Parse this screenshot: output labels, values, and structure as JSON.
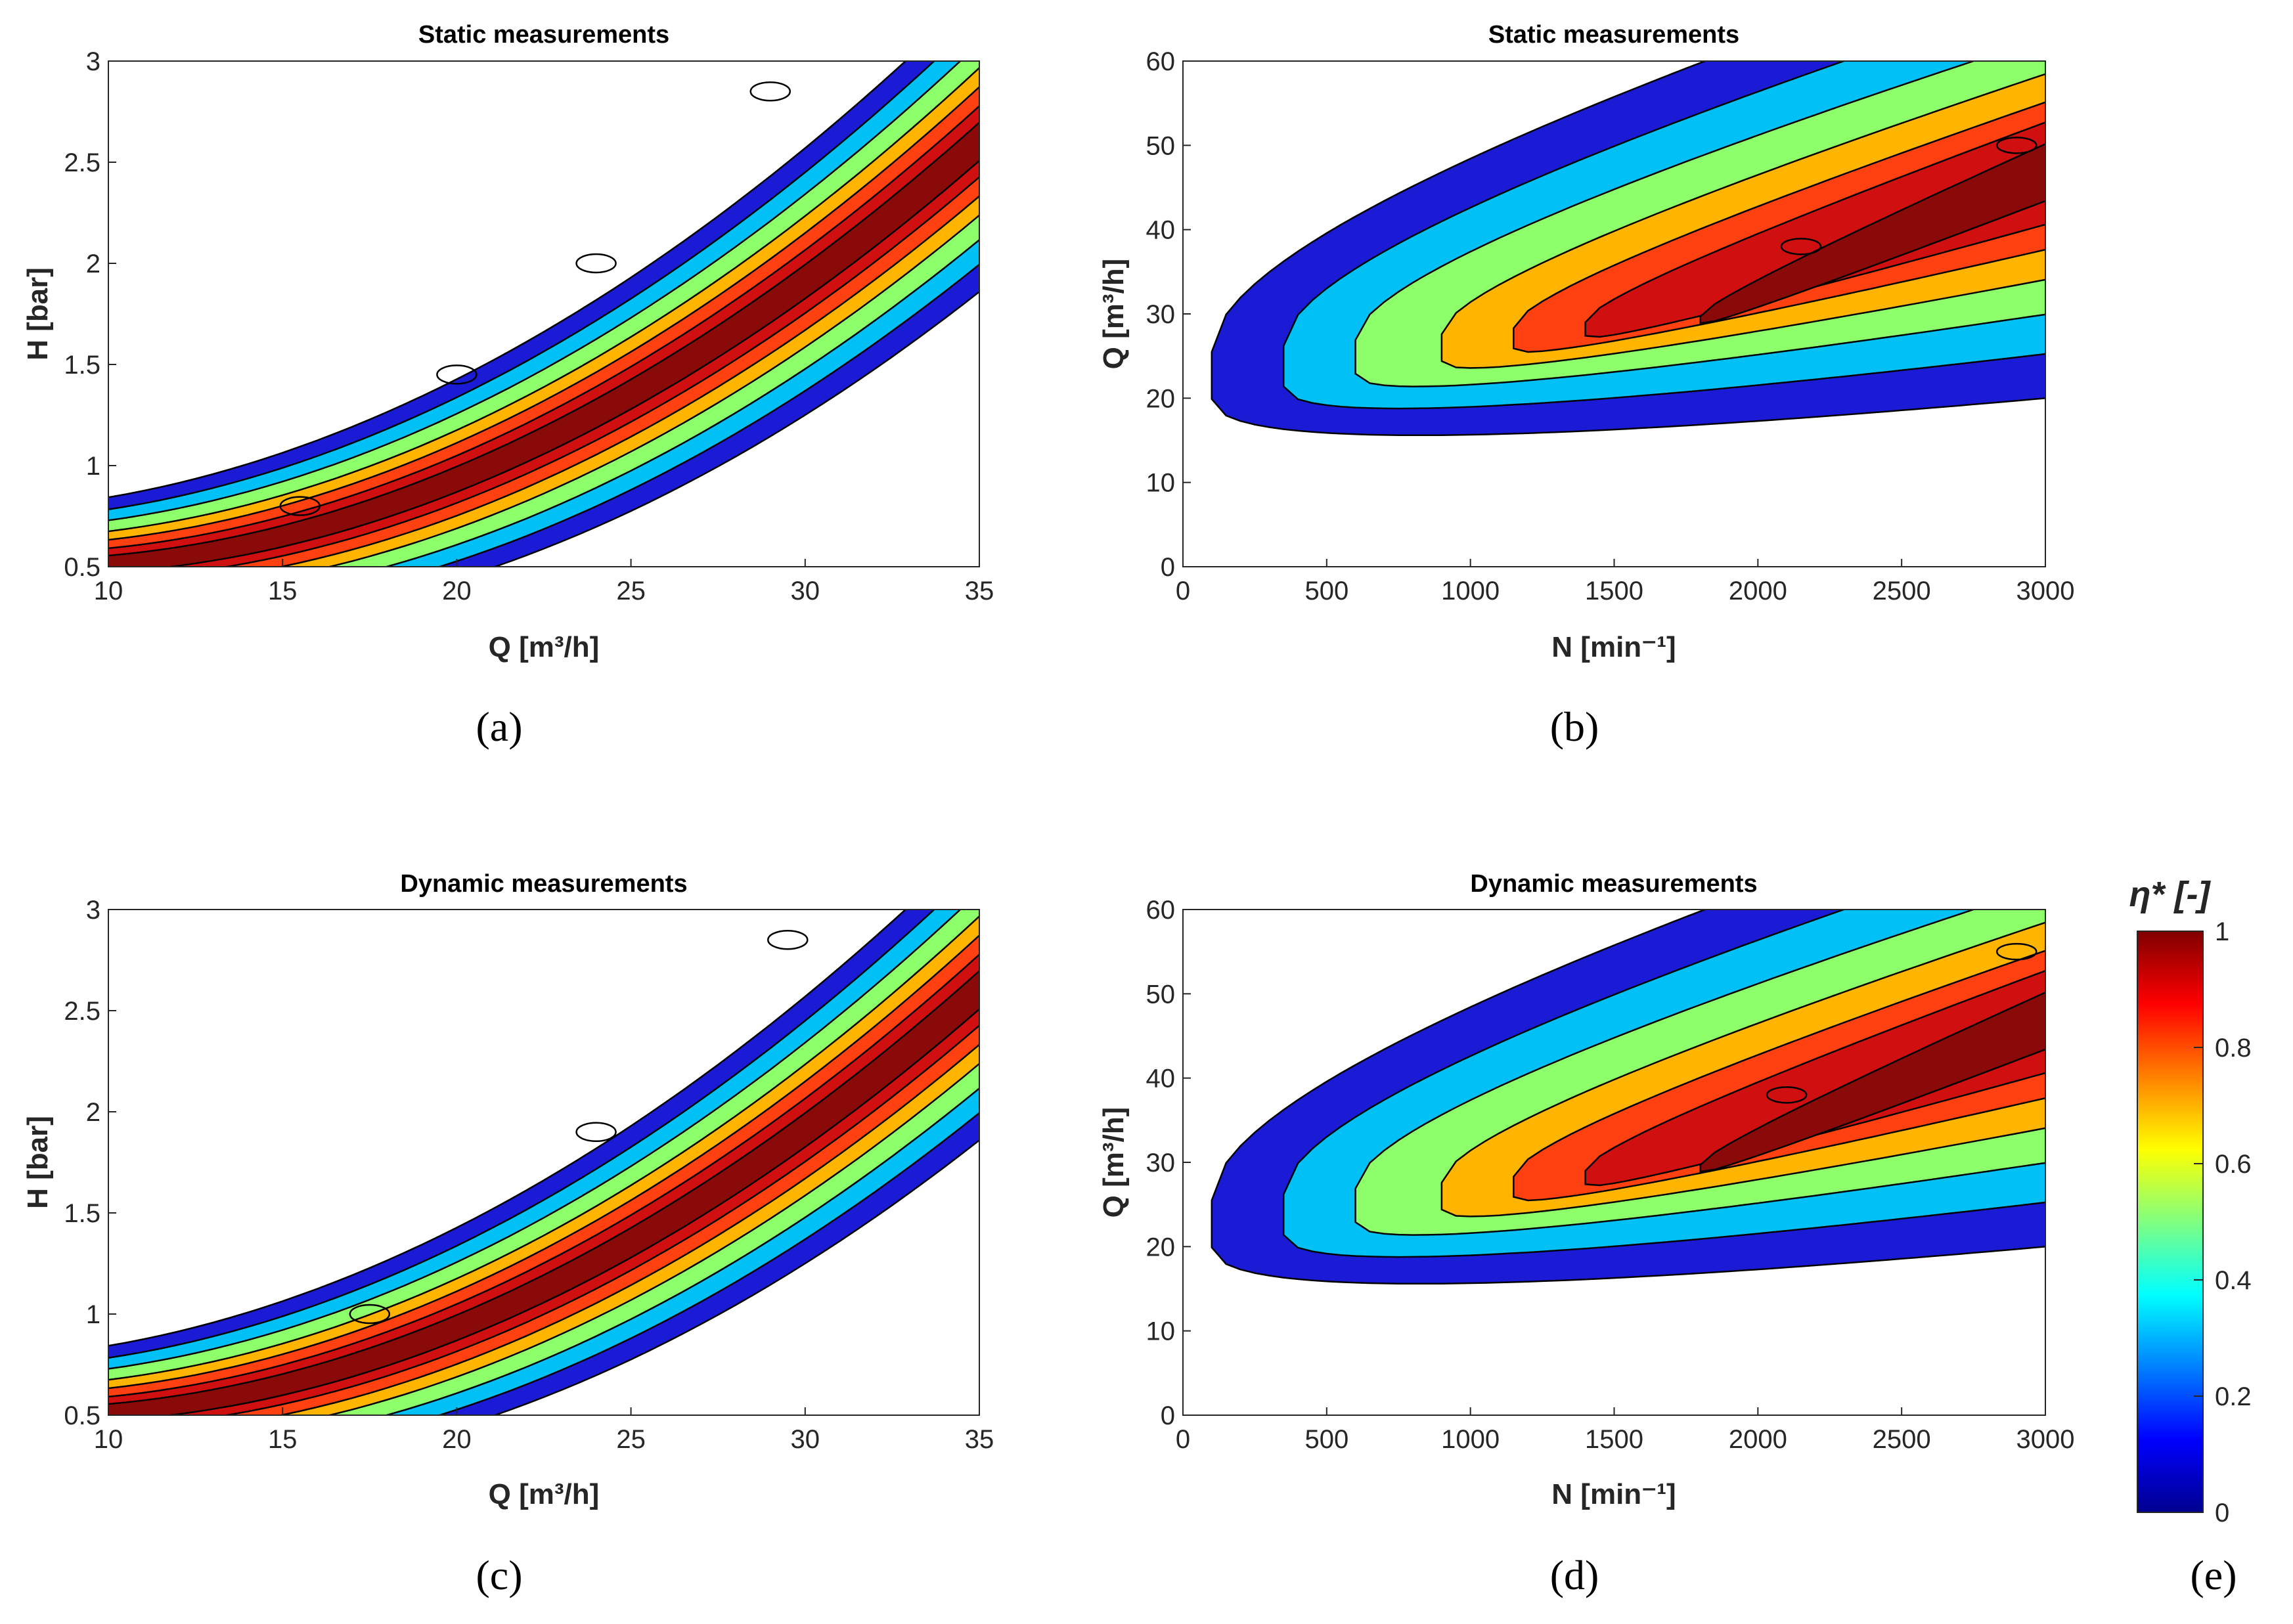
{
  "colormap": [
    "#00008f",
    "#0000ff",
    "#0080ff",
    "#00ffff",
    "#80ff80",
    "#ffff00",
    "#ff8000",
    "#ff0000",
    "#800000"
  ],
  "fill_colors": [
    "#1b1bd6",
    "#00c0f5",
    "#8cff6a",
    "#ffb400",
    "#ff4010",
    "#d01010",
    "#8a0a0a"
  ],
  "panels": [
    {
      "id": "a",
      "label": "(a)",
      "title": "Static measurements",
      "xlabel": "Q [m³/h]",
      "ylabel": "H [bar]",
      "xticks": [
        "10",
        "15",
        "20",
        "25",
        "30",
        "35"
      ],
      "yticks": [
        "0.5",
        "1",
        "1.5",
        "2",
        "2.5",
        "3"
      ]
    },
    {
      "id": "b",
      "label": "(b)",
      "title": "Static measurements",
      "xlabel": "N [min⁻¹]",
      "ylabel": "Q [m³/h]",
      "xticks": [
        "0",
        "500",
        "1000",
        "1500",
        "2000",
        "2500",
        "3000"
      ],
      "yticks": [
        "0",
        "10",
        "20",
        "30",
        "40",
        "50",
        "60"
      ]
    },
    {
      "id": "c",
      "label": "(c)",
      "title": "Dynamic measurements",
      "xlabel": "Q [m³/h]",
      "ylabel": "H [bar]",
      "xticks": [
        "10",
        "15",
        "20",
        "25",
        "30",
        "35"
      ],
      "yticks": [
        "0.5",
        "1",
        "1.5",
        "2",
        "2.5",
        "3"
      ]
    },
    {
      "id": "d",
      "label": "(d)",
      "title": "Dynamic measurements",
      "xlabel": "N [min⁻¹]",
      "ylabel": "Q [m³/h]",
      "xticks": [
        "0",
        "500",
        "1000",
        "1500",
        "2000",
        "2500",
        "3000"
      ],
      "yticks": [
        "0",
        "10",
        "20",
        "30",
        "40",
        "50",
        "60"
      ]
    }
  ],
  "colorbar": {
    "label": "(e)",
    "title": "η* [-]",
    "ticks": [
      "0",
      "0.2",
      "0.4",
      "0.6",
      "0.8",
      "1"
    ]
  },
  "chart_data": [
    {
      "type": "contour",
      "panel": "a",
      "title": "Static measurements",
      "xlabel": "Q [m³/h]",
      "ylabel": "H [bar]",
      "xlim": [
        10,
        35
      ],
      "ylim": [
        0.5,
        3
      ],
      "levels": [
        0.1,
        0.3,
        0.5,
        0.7,
        0.8,
        0.9,
        0.95
      ],
      "peak_efficiency_points": [
        {
          "x": 15.5,
          "y": 0.8
        },
        {
          "x": 20,
          "y": 1.45
        },
        {
          "x": 24,
          "y": 2.0
        },
        {
          "x": 29,
          "y": 2.85
        }
      ]
    },
    {
      "type": "contour",
      "panel": "b",
      "title": "Static measurements",
      "xlabel": "N [min⁻¹]",
      "ylabel": "Q [m³/h]",
      "xlim": [
        0,
        3000
      ],
      "ylim": [
        0,
        60
      ],
      "levels": [
        0.1,
        0.3,
        0.5,
        0.7,
        0.8,
        0.9,
        0.95,
        0.97
      ],
      "peak_efficiency_points": [
        {
          "x": 2150,
          "y": 38
        },
        {
          "x": 2900,
          "y": 50
        }
      ]
    },
    {
      "type": "contour",
      "panel": "c",
      "title": "Dynamic measurements",
      "xlabel": "Q [m³/h]",
      "ylabel": "H [bar]",
      "xlim": [
        10,
        35
      ],
      "ylim": [
        0.5,
        3
      ],
      "levels": [
        0.1,
        0.3,
        0.5,
        0.7,
        0.8,
        0.9,
        0.95
      ],
      "peak_efficiency_points": [
        {
          "x": 17.5,
          "y": 1.0
        },
        {
          "x": 24,
          "y": 1.9
        },
        {
          "x": 29.5,
          "y": 2.85
        }
      ]
    },
    {
      "type": "contour",
      "panel": "d",
      "title": "Dynamic measurements",
      "xlabel": "N [min⁻¹]",
      "ylabel": "Q [m³/h]",
      "xlim": [
        0,
        3000
      ],
      "ylim": [
        0,
        60
      ],
      "levels": [
        0.1,
        0.3,
        0.5,
        0.7,
        0.8,
        0.9,
        0.95
      ],
      "peak_efficiency_points": [
        {
          "x": 2100,
          "y": 38
        },
        {
          "x": 2900,
          "y": 55
        }
      ]
    },
    {
      "type": "colorbar",
      "panel": "e",
      "title": "η* [-]",
      "range": [
        0,
        1
      ],
      "ticks": [
        0,
        0.2,
        0.4,
        0.6,
        0.8,
        1
      ]
    }
  ]
}
